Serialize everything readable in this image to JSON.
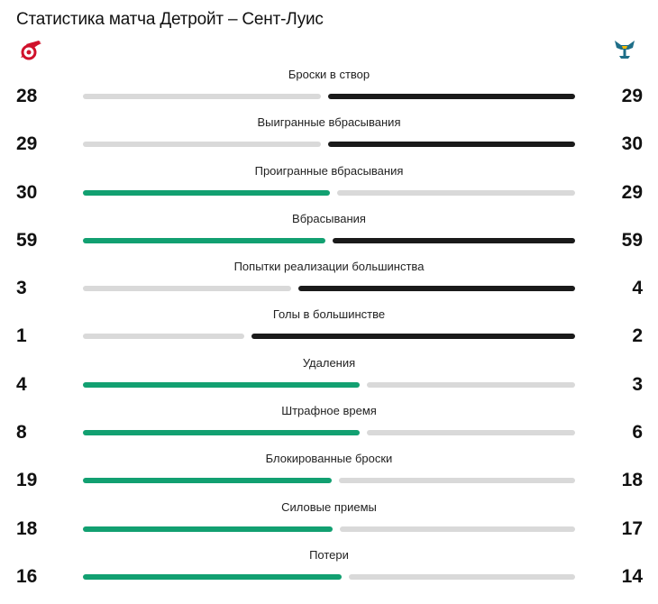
{
  "header": {
    "title": "Статистика матча Детройт – Сент-Луис"
  },
  "teams": {
    "home": {
      "logo_icon": "red-wings-logo-icon",
      "color": "#d0112b"
    },
    "away": {
      "logo_icon": "blues-logo-icon",
      "color": "#1e6e88"
    }
  },
  "colors": {
    "leader": "#12a071",
    "dark": "#1a1a1a",
    "muted": "#d9d9d9"
  },
  "stats": [
    {
      "label": "Броски в створ",
      "home": 28,
      "away": 29
    },
    {
      "label": "Выигранные вбрасывания",
      "home": 29,
      "away": 30
    },
    {
      "label": "Проигранные вбрасывания",
      "home": 30,
      "away": 29
    },
    {
      "label": "Вбрасывания",
      "home": 59,
      "away": 59
    },
    {
      "label": "Попытки реализации большинства",
      "home": 3,
      "away": 4
    },
    {
      "label": "Голы в большинстве",
      "home": 1,
      "away": 2
    },
    {
      "label": "Удаления",
      "home": 4,
      "away": 3
    },
    {
      "label": "Штрафное время",
      "home": 8,
      "away": 6
    },
    {
      "label": "Блокированные броски",
      "home": 19,
      "away": 18
    },
    {
      "label": "Силовые приемы",
      "home": 18,
      "away": 17
    },
    {
      "label": "Потери",
      "home": 16,
      "away": 14
    }
  ]
}
